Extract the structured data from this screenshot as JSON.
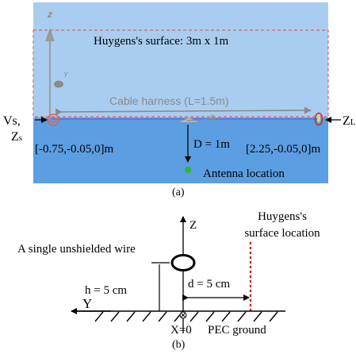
{
  "panel_a": {
    "axis_z": "z",
    "axis_y": "Y",
    "axis_x": "X",
    "huygens_label": "Huygens's surface: 3m x 1m",
    "cable_label": "Cable harness (L=1.5m)",
    "source_label_line1": "Vs,",
    "source_label_line2": "Zs",
    "load_label": "ZL",
    "distance_label": "D = 1m",
    "left_coord": "[-0.75,-0.05,0]m",
    "right_coord": "[2.25,-0.05,0]m",
    "antenna_label": "Antenna location",
    "caption": "(a)",
    "colors": {
      "background": "#a9cdf0",
      "ground": "#5b9ee2",
      "border": "#e24b4b",
      "antenna": "#25c02a"
    }
  },
  "panel_b": {
    "axis_z": "Z",
    "axis_y": "Y",
    "huygens_label_line1": "Huygens's",
    "huygens_label_line2": "surface location",
    "wire_label": "A single unshielded wire",
    "height_label": "h = 5 cm",
    "distance_label": "d = 5 cm",
    "origin_label": "X=0",
    "ground_label": "PEC ground",
    "caption": "(b)",
    "colors": {
      "surface_line": "#d01818"
    }
  }
}
